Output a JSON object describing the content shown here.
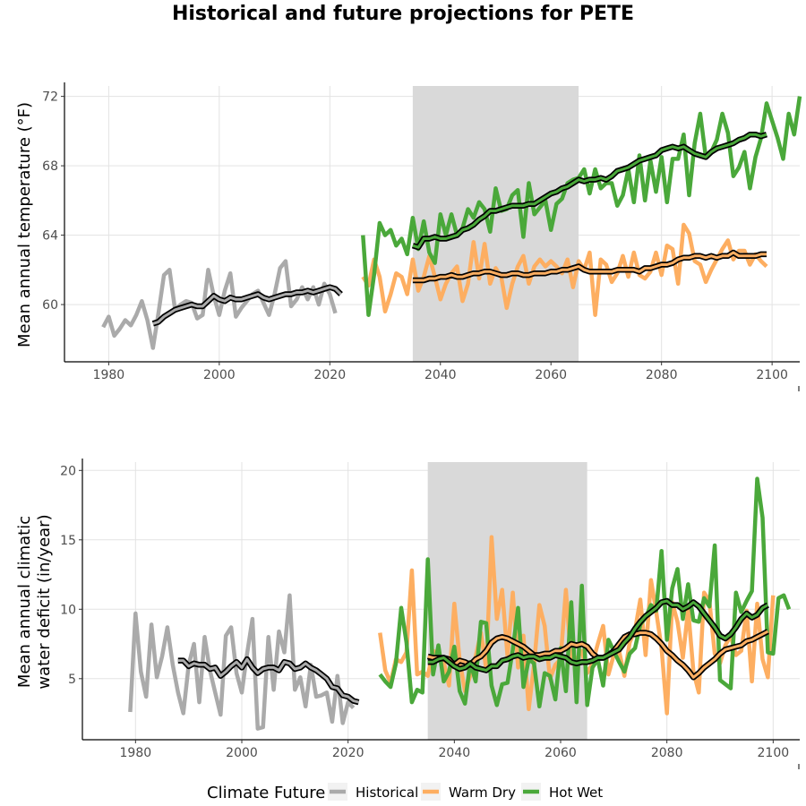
{
  "figure_title": "Historical and future projections for PETE",
  "legend": {
    "title": "Climate Future",
    "entries": [
      {
        "label": "Historical",
        "color": "#aaaaaa"
      },
      {
        "label": "Warm Dry",
        "color": "#fdae61"
      },
      {
        "label": "Hot Wet",
        "color": "#4aa83a"
      }
    ]
  },
  "chart_data": [
    {
      "type": "line",
      "title": "",
      "ylabel": "Mean annual temperature (°F)",
      "xlabel": "",
      "xlim": [
        1972,
        2105
      ],
      "ylim": [
        56.7,
        72.6
      ],
      "x_ticks": [
        1980,
        2000,
        2020,
        2040,
        2060,
        2080,
        2100
      ],
      "y_ticks": [
        60,
        64,
        68,
        72
      ],
      "shaded_period": [
        2035,
        2065
      ],
      "series": [
        {
          "name": "Historical",
          "color": "#aaaaaa",
          "start_year": 1979,
          "values": [
            58.7,
            59.3,
            58.2,
            58.6,
            59.1,
            58.8,
            59.4,
            60.2,
            59.1,
            57.5,
            59.5,
            61.7,
            62.0,
            59.7,
            60.0,
            60.2,
            60.1,
            59.2,
            59.4,
            62.0,
            60.5,
            59.4,
            60.8,
            61.8,
            59.3,
            59.8,
            60.2,
            60.6,
            60.8,
            60.1,
            59.4,
            60.6,
            62.1,
            62.5,
            59.9,
            60.3,
            61.0,
            60.3,
            61.0,
            60.0,
            61.2,
            60.6,
            59.5
          ]
        },
        {
          "name": "Historical smooth",
          "color": "#aaaaaa",
          "start_year": 1988,
          "values": [
            58.9,
            59.0,
            59.3,
            59.5,
            59.7,
            59.8,
            59.9,
            60.0,
            59.9,
            59.9,
            60.2,
            60.5,
            60.3,
            60.2,
            60.4,
            60.3,
            60.3,
            60.4,
            60.5,
            60.6,
            60.4,
            60.3,
            60.4,
            60.5,
            60.6,
            60.6,
            60.7,
            60.7,
            60.8,
            60.7,
            60.8,
            60.9,
            61.0,
            60.9,
            60.6
          ]
        },
        {
          "name": "Warm Dry",
          "color": "#fdae61",
          "start_year": 2026,
          "values": [
            61.6,
            61.1,
            62.6,
            61.6,
            59.6,
            60.6,
            61.8,
            61.6,
            60.6,
            62.6,
            60.8,
            61.6,
            62.8,
            61.6,
            60.3,
            61.2,
            61.8,
            62.2,
            60.2,
            61.2,
            63.6,
            61.5,
            63.5,
            61.2,
            62.1,
            61.6,
            59.8,
            61.2,
            62.2,
            62.8,
            61.2,
            62.2,
            62.6,
            62.2,
            62.5,
            62.2,
            61.8,
            62.6,
            61.0,
            62.5,
            62.0,
            63.0,
            59.4,
            62.6,
            62.3,
            61.3,
            61.8,
            62.8,
            61.6,
            63.0,
            61.7,
            61.5,
            61.9,
            63.0,
            61.7,
            63.4,
            63.2,
            61.2,
            64.6,
            64.1,
            62.5,
            62.3,
            61.3,
            62.0,
            62.6,
            63.2,
            63.7,
            62.6,
            63.1,
            63.1,
            62.3,
            62.9,
            62.5,
            62.2
          ]
        },
        {
          "name": "Warm Dry smooth",
          "color": "#fdae61",
          "start_year": 2035,
          "values": [
            61.4,
            61.4,
            61.4,
            61.5,
            61.5,
            61.6,
            61.6,
            61.7,
            61.6,
            61.6,
            61.7,
            61.8,
            61.8,
            61.9,
            61.9,
            61.8,
            61.7,
            61.7,
            61.8,
            61.8,
            61.7,
            61.7,
            61.8,
            61.8,
            61.8,
            61.9,
            61.9,
            62.0,
            62.0,
            62.1,
            62.2,
            62.0,
            61.9,
            61.9,
            61.9,
            61.9,
            61.9,
            62.0,
            62.0,
            62.0,
            62.0,
            61.9,
            62.1,
            62.1,
            62.2,
            62.3,
            62.3,
            62.4,
            62.6,
            62.7,
            62.7,
            62.8,
            62.8,
            62.7,
            62.8,
            62.7,
            62.8,
            62.8,
            63.0,
            62.8,
            62.8,
            62.8,
            62.8,
            62.9,
            62.9
          ]
        },
        {
          "name": "Hot Wet",
          "color": "#4aa83a",
          "start_year": 2026,
          "values": [
            64.0,
            59.4,
            61.7,
            64.7,
            64.0,
            64.3,
            63.4,
            63.8,
            62.9,
            65.0,
            63.2,
            64.8,
            63.0,
            62.4,
            65.2,
            64.0,
            65.2,
            64.0,
            64.4,
            65.5,
            65.0,
            65.9,
            65.5,
            64.2,
            66.7,
            65.4,
            65.5,
            66.3,
            66.6,
            63.9,
            67.0,
            65.2,
            65.6,
            66.0,
            64.3,
            65.8,
            66.1,
            67.0,
            67.2,
            67.3,
            67.8,
            66.4,
            67.8,
            66.7,
            67.0,
            67.0,
            65.7,
            66.3,
            67.8,
            65.9,
            68.6,
            66.0,
            68.3,
            66.5,
            68.5,
            65.9,
            68.4,
            68.4,
            69.8,
            66.3,
            69.3,
            71.0,
            68.5,
            68.8,
            69.5,
            71.0,
            69.9,
            67.4,
            67.9,
            68.8,
            66.7,
            68.5,
            69.6,
            71.6,
            70.6,
            69.6,
            68.4,
            71.0,
            69.8,
            72.0
          ]
        },
        {
          "name": "Hot Wet smooth",
          "color": "#4aa83a",
          "start_year": 2035,
          "values": [
            63.4,
            63.3,
            63.8,
            63.8,
            63.9,
            63.8,
            63.8,
            63.9,
            64.0,
            64.3,
            64.4,
            64.6,
            64.9,
            65.1,
            65.4,
            65.4,
            65.5,
            65.6,
            65.7,
            65.7,
            65.7,
            65.8,
            65.8,
            66.0,
            66.2,
            66.4,
            66.5,
            66.7,
            66.8,
            67.0,
            67.2,
            67.1,
            67.2,
            67.2,
            67.3,
            67.2,
            67.4,
            67.7,
            67.8,
            67.9,
            68.1,
            68.3,
            68.4,
            68.5,
            68.6,
            68.9,
            69.0,
            69.1,
            69.0,
            69.1,
            68.9,
            68.7,
            68.6,
            68.5,
            68.8,
            69.0,
            69.1,
            69.2,
            69.3,
            69.5,
            69.6,
            69.8,
            69.8,
            69.7,
            69.8
          ]
        }
      ]
    },
    {
      "type": "line",
      "title": "",
      "ylabel": "Mean annual climatic water deficit (in/year)",
      "ylabel_lines": [
        "Mean annual climatic",
        "water deficit (in/year)"
      ],
      "xlabel": "",
      "xlim": [
        1970,
        2105
      ],
      "ylim": [
        0.6,
        20.6
      ],
      "x_ticks": [
        1980,
        2000,
        2020,
        2040,
        2060,
        2080,
        2100
      ],
      "y_ticks": [
        5,
        10,
        15,
        20
      ],
      "shaded_period": [
        2035,
        2065
      ],
      "series": [
        {
          "name": "Historical",
          "color": "#aaaaaa",
          "start_year": 1979,
          "values": [
            2.6,
            9.7,
            5.5,
            3.7,
            8.9,
            5.1,
            6.6,
            8.7,
            6.0,
            4.0,
            2.5,
            6.0,
            7.5,
            3.3,
            8.0,
            5.6,
            4.0,
            2.4,
            8.1,
            8.7,
            5.4,
            4.0,
            6.8,
            9.3,
            1.4,
            1.5,
            8.0,
            4.2,
            8.4,
            6.9,
            11.0,
            4.2,
            5.1,
            3.0,
            6.0,
            3.7,
            3.8,
            4.0,
            1.9,
            5.2,
            1.8,
            3.3,
            2.9
          ]
        },
        {
          "name": "Historical smooth",
          "color": "#aaaaaa",
          "start_year": 1988,
          "values": [
            6.3,
            6.3,
            5.9,
            6.1,
            6.0,
            6.0,
            5.7,
            5.8,
            5.2,
            5.5,
            5.9,
            6.2,
            5.8,
            6.4,
            5.8,
            5.4,
            5.7,
            5.8,
            5.8,
            5.6,
            6.2,
            6.1,
            5.7,
            5.8,
            6.1,
            5.8,
            5.6,
            5.3,
            5.0,
            4.4,
            4.3,
            3.8,
            3.7,
            3.4,
            3.3
          ]
        },
        {
          "name": "Warm Dry",
          "color": "#fdae61",
          "start_year": 2026,
          "values": [
            8.3,
            5.6,
            4.7,
            6.4,
            6.2,
            6.9,
            12.8,
            5.3,
            5.5,
            5.2,
            7.0,
            6.8,
            6.2,
            4.5,
            10.4,
            6.3,
            4.1,
            5.2,
            6.6,
            8.3,
            5.7,
            15.2,
            9.3,
            11.4,
            6.6,
            11.2,
            5.8,
            8.1,
            2.8,
            6.0,
            10.3,
            8.8,
            5.0,
            6.0,
            6.4,
            11.4,
            6.1,
            6.4,
            7.0,
            5.4,
            6.1,
            7.5,
            8.8,
            5.3,
            6.7,
            7.0,
            5.2,
            7.6,
            8.5,
            10.7,
            6.7,
            12.1,
            9.8,
            7.2,
            2.5,
            10.5,
            9.1,
            6.5,
            10.0,
            5.5,
            4.0,
            11.2,
            10.6,
            6.8,
            6.1,
            7.4,
            8.1,
            6.7,
            7.0,
            9.9,
            4.8,
            10.4,
            6.4,
            5.1,
            11.0
          ]
        },
        {
          "name": "Warm Dry smooth",
          "color": "#fdae61",
          "start_year": 2035,
          "values": [
            6.6,
            6.5,
            6.5,
            6.5,
            6.4,
            6.0,
            6.3,
            6.2,
            6.0,
            6.4,
            6.6,
            7.0,
            7.6,
            7.9,
            8.0,
            7.9,
            7.7,
            7.5,
            7.3,
            7.0,
            6.7,
            6.7,
            6.8,
            6.8,
            7.0,
            7.0,
            7.2,
            7.5,
            7.4,
            7.5,
            7.3,
            6.8,
            6.5,
            6.5,
            6.7,
            7.0,
            7.5,
            8.0,
            8.2,
            8.2,
            8.3,
            8.3,
            8.2,
            7.9,
            7.5,
            7.0,
            6.7,
            6.3,
            6.0,
            5.6,
            5.1,
            5.4,
            5.8,
            6.1,
            6.4,
            6.8,
            7.1,
            7.2,
            7.3,
            7.4,
            7.7,
            7.8,
            8.0,
            8.2,
            8.4
          ]
        },
        {
          "name": "Hot Wet",
          "color": "#4aa83a",
          "start_year": 2026,
          "values": [
            5.3,
            4.8,
            4.4,
            6.1,
            10.1,
            7.6,
            3.3,
            4.2,
            4.0,
            13.6,
            5.3,
            7.4,
            4.8,
            5.5,
            7.3,
            4.1,
            3.2,
            6.2,
            4.8,
            9.1,
            9.0,
            4.5,
            3.1,
            4.6,
            4.7,
            7.1,
            10.1,
            4.4,
            6.4,
            6.1,
            3.0,
            5.4,
            5.2,
            3.5,
            7.2,
            4.1,
            10.5,
            3.3,
            11.7,
            3.1,
            5.8,
            6.4,
            4.5,
            7.8,
            7.0,
            6.2,
            5.5,
            6.8,
            7.2,
            8.9,
            9.4,
            10.3,
            9.9,
            14.2,
            7.8,
            11.5,
            12.9,
            9.3,
            11.8,
            9.2,
            9.1,
            10.8,
            10.2,
            14.6,
            4.9,
            4.6,
            4.3,
            11.2,
            9.8,
            10.6,
            11.3,
            19.4,
            16.6,
            6.9,
            6.8,
            10.8,
            11.0,
            10.0
          ]
        },
        {
          "name": "Hot Wet smooth",
          "color": "#4aa83a",
          "start_year": 2035,
          "values": [
            6.2,
            6.2,
            6.4,
            6.5,
            6.2,
            5.9,
            5.7,
            5.8,
            6.1,
            5.8,
            5.7,
            5.6,
            5.9,
            5.9,
            6.3,
            6.4,
            6.6,
            6.7,
            6.5,
            6.6,
            6.6,
            6.4,
            6.5,
            6.5,
            6.7,
            6.6,
            6.5,
            6.2,
            6.1,
            6.2,
            6.2,
            6.3,
            6.5,
            6.5,
            6.7,
            6.9,
            7.1,
            7.6,
            8.0,
            8.6,
            9.1,
            9.5,
            9.8,
            10.1,
            10.5,
            10.6,
            10.3,
            10.3,
            10.0,
            10.2,
            10.5,
            10.2,
            9.7,
            9.2,
            8.7,
            8.1,
            7.9,
            8.2,
            8.7,
            9.3,
            9.7,
            9.4,
            9.6,
            10.1,
            10.3
          ]
        }
      ]
    }
  ]
}
